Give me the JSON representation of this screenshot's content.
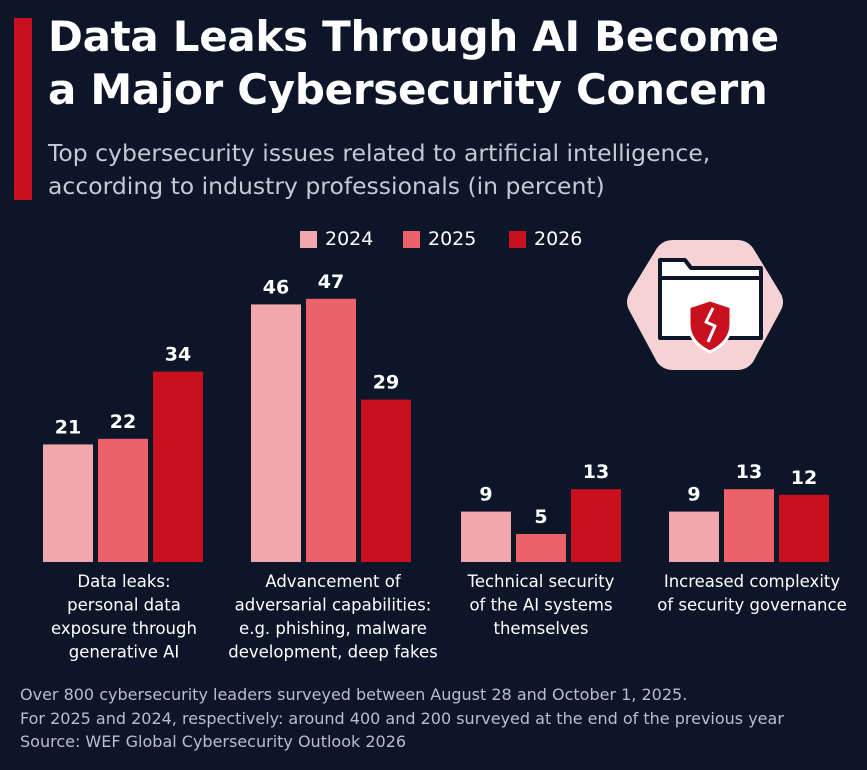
{
  "title_lines": [
    "Data Leaks Through AI Become",
    "a Major Cybersecurity Concern"
  ],
  "subtitle_lines": [
    "Top cybersecurity issues related to artificial intelligence,",
    "according to industry professionals (in percent)"
  ],
  "colors": {
    "2024": "#f2a7ae",
    "2025": "#ec6268",
    "2026": "#c8101e",
    "background": "#0c1628",
    "accent": "#c8101e"
  },
  "icon": "folder-with-broken-shield-icon",
  "chart_data": {
    "type": "bar",
    "categories": [
      [
        "Data leaks:",
        "personal data",
        "exposure through",
        "generative AI"
      ],
      [
        "Advancement of",
        "adversarial capabilities:",
        "e.g. phishing, malware",
        "development, deep fakes"
      ],
      [
        "Technical security",
        "of the AI systems",
        "themselves"
      ],
      [
        "Increased complexity",
        "of security governance"
      ]
    ],
    "series": [
      {
        "name": "2024",
        "values": [
          21,
          46,
          9,
          9
        ]
      },
      {
        "name": "2025",
        "values": [
          22,
          47,
          5,
          13
        ]
      },
      {
        "name": "2026",
        "values": [
          34,
          29,
          13,
          12
        ]
      }
    ],
    "ylim": [
      0,
      47
    ],
    "legend_position": "top",
    "grid": false,
    "data_labels": true
  },
  "footer_lines": [
    "Over 800 cybersecurity leaders surveyed between August 28 and October 1, 2025.",
    "For 2025 and 2024, respectively: around 400 and 200 surveyed at the end of the previous year",
    "Source: WEF Global Cybersecurity Outlook 2026"
  ]
}
